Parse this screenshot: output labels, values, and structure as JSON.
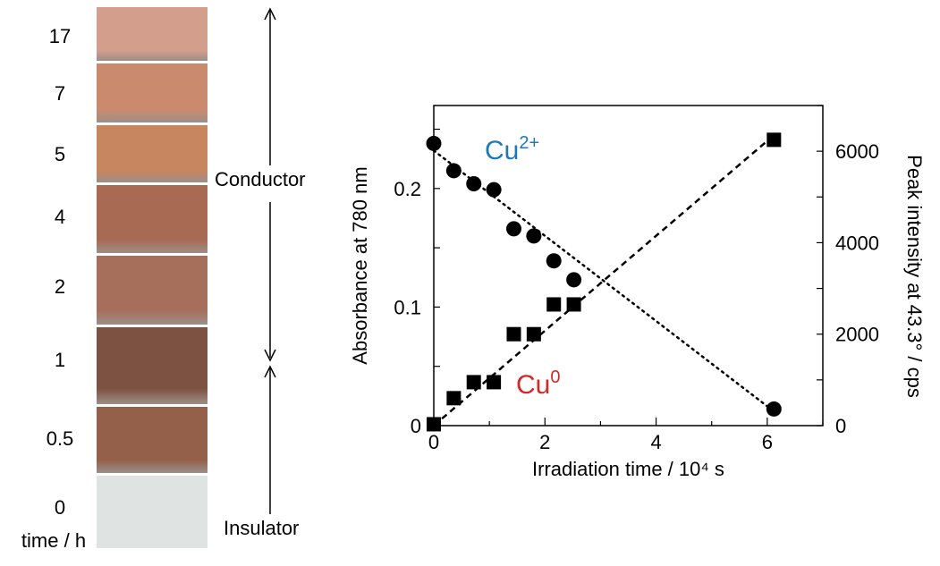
{
  "left_panel": {
    "time_axis_label": "time / h",
    "times": [
      "17",
      "7",
      "5",
      "4",
      "2",
      "1",
      "0.5",
      "0"
    ],
    "swatch_colors": [
      "#d49e8c",
      "#c98a6e",
      "#c78560",
      "#a86a52",
      "#a66f5c",
      "#7e5242",
      "#94604a",
      "#dfe3e1"
    ],
    "conductor_label": "Conductor",
    "insulator_label": "Insulator"
  },
  "chart_data": {
    "type": "scatter",
    "xlabel": "Irradiation time / 10⁴ s",
    "ylabel_left": "Absorbance at 780 nm",
    "ylabel_right": "Peak intensity at 43.3°  / cps",
    "xlim": [
      0,
      7
    ],
    "ylim_left": [
      0,
      0.27
    ],
    "ylim_right": [
      0,
      7000
    ],
    "xticks": [
      0,
      2,
      4,
      6
    ],
    "yticks_left": [
      0,
      0.1,
      0.2
    ],
    "yticks_right": [
      0,
      2000,
      4000,
      6000
    ],
    "series": [
      {
        "name": "Cu²⁺",
        "axis": "left",
        "marker": "circle",
        "x": [
          0,
          0.36,
          0.72,
          1.08,
          1.44,
          1.8,
          2.16,
          2.52,
          6.12
        ],
        "y": [
          0.238,
          0.215,
          0.204,
          0.199,
          0.166,
          0.16,
          0.139,
          0.123,
          0.014
        ],
        "fit": [
          [
            0,
            0.232
          ],
          [
            6.12,
            0.012
          ]
        ],
        "fit_style": "dotted"
      },
      {
        "name": "Cu⁰",
        "axis": "right",
        "marker": "square",
        "x": [
          0,
          0.36,
          0.72,
          1.08,
          1.44,
          1.8,
          2.16,
          2.52,
          6.12
        ],
        "y": [
          30,
          600,
          950,
          950,
          2000,
          2000,
          2650,
          2650,
          6250
        ],
        "fit": [
          [
            0,
            0
          ],
          [
            6.12,
            6350
          ]
        ],
        "fit_style": "dashed"
      }
    ],
    "annotations": [
      {
        "text_main": "Cu",
        "text_sup": "2+",
        "color": "#1f77b4"
      },
      {
        "text_main": "Cu",
        "text_sup": "0",
        "color": "#d62728"
      }
    ]
  }
}
